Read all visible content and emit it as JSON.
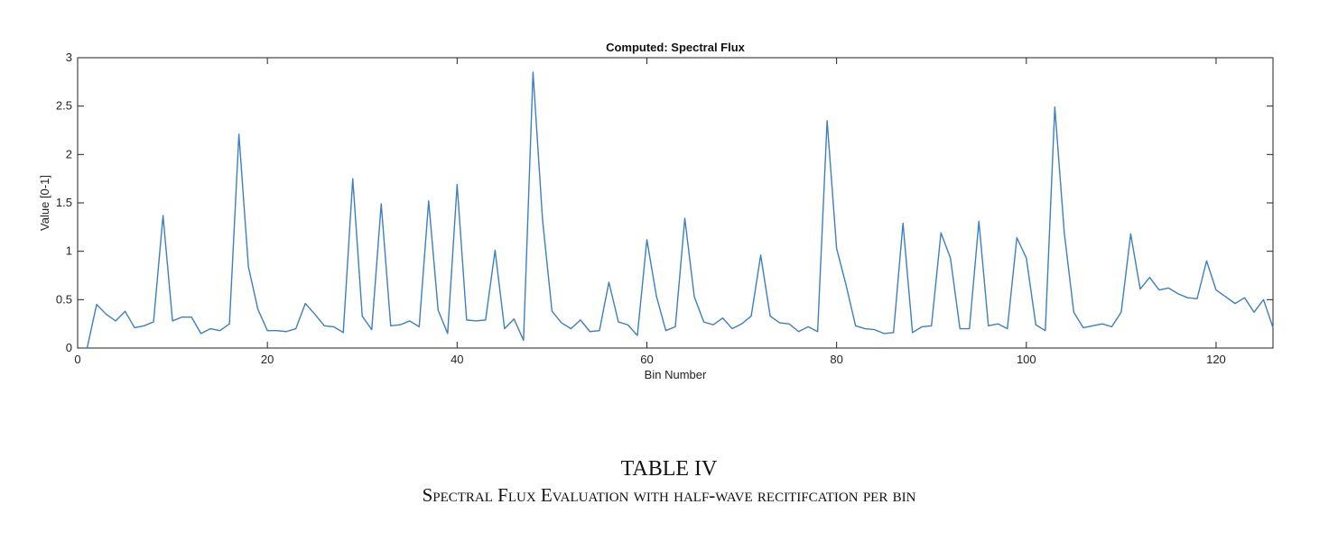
{
  "chart_data": {
    "type": "line",
    "title": "Computed: Spectral Flux",
    "xlabel": "Bin Number",
    "ylabel": "Value [0-1]",
    "xlim": [
      0,
      126
    ],
    "ylim": [
      0,
      3
    ],
    "xticks": [
      0,
      20,
      40,
      60,
      80,
      100,
      120
    ],
    "yticks": [
      0,
      0.5,
      1,
      1.5,
      2,
      2.5,
      3
    ],
    "ytick_labels": [
      "0",
      "0.5",
      "1",
      "1.5",
      "2",
      "2.5",
      "3"
    ],
    "grid": false,
    "line_color": "#3d7fbf",
    "series": [
      {
        "x": [
          1,
          2,
          3,
          4,
          5,
          6,
          7,
          8,
          9,
          10,
          11,
          12,
          13,
          14,
          15,
          16,
          17,
          18,
          19,
          20,
          21,
          22,
          23,
          24,
          25,
          26,
          27,
          28,
          29,
          30,
          31,
          32,
          33,
          34,
          35,
          36,
          37,
          38,
          39,
          40,
          41,
          42,
          43,
          44,
          45,
          46,
          47,
          48,
          49,
          50,
          51,
          52,
          53,
          54,
          55,
          56,
          57,
          58,
          59,
          60,
          61,
          62,
          63,
          64,
          65,
          66,
          67,
          68,
          69,
          70,
          71,
          72,
          73,
          74,
          75,
          76,
          77,
          78,
          79,
          80,
          81,
          82,
          83,
          84,
          85,
          86,
          87,
          88,
          89,
          90,
          91,
          92,
          93,
          94,
          95,
          96,
          97,
          98,
          99,
          100,
          101,
          102,
          103,
          104,
          105,
          106,
          107,
          108,
          109,
          110,
          111,
          112,
          113,
          114,
          115,
          116,
          117,
          118,
          119,
          120,
          121,
          122,
          123,
          124,
          125,
          126
        ],
        "values": [
          0.0,
          0.45,
          0.35,
          0.28,
          0.38,
          0.21,
          0.23,
          0.27,
          1.37,
          0.28,
          0.32,
          0.32,
          0.15,
          0.2,
          0.18,
          0.25,
          2.21,
          0.84,
          0.4,
          0.18,
          0.18,
          0.17,
          0.2,
          0.46,
          0.35,
          0.23,
          0.22,
          0.16,
          1.75,
          0.33,
          0.19,
          1.49,
          0.23,
          0.24,
          0.28,
          0.22,
          1.52,
          0.39,
          0.15,
          1.69,
          0.29,
          0.28,
          0.29,
          1.01,
          0.2,
          0.3,
          0.08,
          2.85,
          1.33,
          0.38,
          0.26,
          0.2,
          0.29,
          0.17,
          0.18,
          0.68,
          0.27,
          0.24,
          0.13,
          1.12,
          0.54,
          0.18,
          0.22,
          1.34,
          0.53,
          0.27,
          0.24,
          0.31,
          0.2,
          0.25,
          0.33,
          0.96,
          0.33,
          0.26,
          0.25,
          0.17,
          0.22,
          0.17,
          2.35,
          1.03,
          0.65,
          0.23,
          0.2,
          0.19,
          0.15,
          0.16,
          1.29,
          0.16,
          0.22,
          0.23,
          1.19,
          0.93,
          0.2,
          0.2,
          1.31,
          0.23,
          0.25,
          0.2,
          1.14,
          0.93,
          0.24,
          0.18,
          2.49,
          1.19,
          0.37,
          0.21,
          0.23,
          0.25,
          0.22,
          0.37,
          1.18,
          0.61,
          0.73,
          0.6,
          0.62,
          0.56,
          0.52,
          0.51,
          0.9,
          0.6,
          0.53,
          0.46,
          0.52,
          0.37,
          0.5,
          0.21
        ]
      }
    ]
  },
  "caption": {
    "table_number": "TABLE IV",
    "description": "Spectral Flux Evaluation with half-wave recitifcation per bin"
  }
}
